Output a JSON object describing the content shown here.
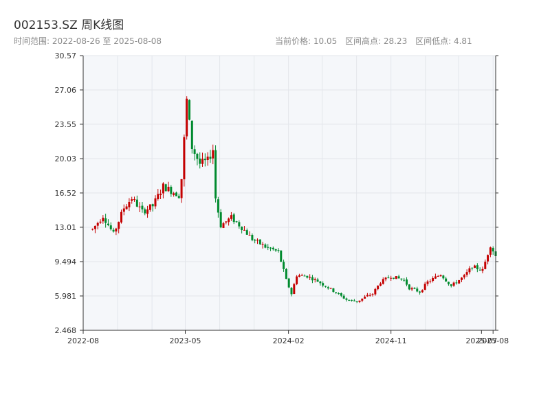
{
  "header": {
    "title": "002153.SZ 周K线图",
    "range_text": "时间范围: 2022-08-26 至 2025-08-08",
    "current_price_text": "当前价格: 10.05",
    "high_text": "区间高点: 28.23",
    "low_text": "区间低点: 4.81"
  },
  "colors": {
    "up": "#c40000",
    "down": "#008a2e",
    "plot_bg": "#f5f7fa",
    "grid": "#e3e6eb",
    "axis": "#333333"
  },
  "chart_data": {
    "type": "candlestick",
    "title": "002153.SZ 周K线图",
    "y_ticks": [
      "2.468",
      "5.981",
      "9.494",
      "13.01",
      "16.52",
      "20.03",
      "23.55",
      "27.06",
      "30.57"
    ],
    "ylim": [
      2.468,
      30.57
    ],
    "x_ticks": [
      {
        "label": "2022-08",
        "date": "2022-08-01"
      },
      {
        "label": "2023-05",
        "date": "2023-05-01"
      },
      {
        "label": "2024-02",
        "date": "2024-02-01"
      },
      {
        "label": "2024-11",
        "date": "2024-11-01"
      },
      {
        "label": "2025-07",
        "date": "2025-07-01"
      },
      {
        "label": "2025-08",
        "date": "2025-08-01"
      }
    ],
    "xlim": [
      "2022-08-01",
      "2025-08-08"
    ],
    "grid": true,
    "price_points": [
      [
        "2022-08-26",
        12.8
      ],
      [
        "2022-09-23",
        14.2
      ],
      [
        "2022-10-21",
        12.3
      ],
      [
        "2022-11-18",
        15.0
      ],
      [
        "2022-12-09",
        16.0
      ],
      [
        "2023-01-06",
        14.6
      ],
      [
        "2023-02-03",
        15.2
      ],
      [
        "2023-03-03",
        17.2
      ],
      [
        "2023-03-31",
        16.6
      ],
      [
        "2023-04-14",
        16.3
      ],
      [
        "2023-04-21",
        18.0
      ],
      [
        "2023-05-05",
        26.0
      ],
      [
        "2023-05-19",
        21.2
      ],
      [
        "2023-06-09",
        19.5
      ],
      [
        "2023-06-30",
        19.8
      ],
      [
        "2023-07-14",
        21.0
      ],
      [
        "2023-07-21",
        16.0
      ],
      [
        "2023-08-04",
        13.2
      ],
      [
        "2023-09-01",
        14.0
      ],
      [
        "2023-09-29",
        13.0
      ],
      [
        "2023-10-27",
        11.8
      ],
      [
        "2023-12-01",
        11.0
      ],
      [
        "2024-01-05",
        10.5
      ],
      [
        "2024-01-26",
        7.6
      ],
      [
        "2024-02-09",
        6.2
      ],
      [
        "2024-02-23",
        8.1
      ],
      [
        "2024-03-22",
        8.0
      ],
      [
        "2024-04-19",
        7.5
      ],
      [
        "2024-05-31",
        6.5
      ],
      [
        "2024-07-05",
        5.6
      ],
      [
        "2024-08-02",
        5.4
      ],
      [
        "2024-08-30",
        6.0
      ],
      [
        "2024-09-13",
        6.2
      ],
      [
        "2024-10-04",
        7.4
      ],
      [
        "2024-11-01",
        8.0
      ],
      [
        "2024-12-06",
        7.6
      ],
      [
        "2024-12-20",
        6.8
      ],
      [
        "2025-01-17",
        6.4
      ],
      [
        "2025-02-07",
        7.4
      ],
      [
        "2025-03-14",
        8.2
      ],
      [
        "2025-04-11",
        7.0
      ],
      [
        "2025-05-16",
        8.0
      ],
      [
        "2025-06-06",
        9.0
      ],
      [
        "2025-07-04",
        8.6
      ],
      [
        "2025-07-25",
        11.2
      ],
      [
        "2025-08-08",
        10.05
      ]
    ]
  }
}
